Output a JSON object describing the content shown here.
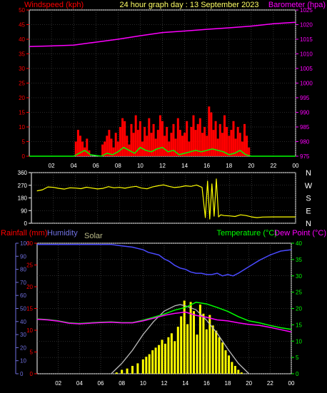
{
  "header": {
    "left_label": "Windspeed (kph)",
    "center_label": "24 hour graph day : 13 September 2023",
    "right_label": "Barometer (hpa)"
  },
  "colors": {
    "background": "#000000",
    "grid": "#555555",
    "red": "#ff0000",
    "magenta": "#ff00ff",
    "lime": "#00ff00",
    "yellow": "#ffff00",
    "blue": "#4a4aff",
    "lavender": "#7070e0",
    "solar_label": "#bbbb88",
    "solar_curve": "#bbbbbb",
    "white": "#ffffff"
  },
  "chart_data": [
    {
      "id": "wind-baro",
      "type": "line",
      "title": "24 hour graph day : 13 September 2023",
      "ylabel_left": "Windspeed (kph)",
      "ylabel_right": "Barometer (hpa)",
      "x_ticks": [
        "02",
        "04",
        "06",
        "08",
        "10",
        "12",
        "14",
        "16",
        "18",
        "20",
        "22",
        "00"
      ],
      "x_range": [
        0,
        24
      ],
      "left_axis": {
        "range": [
          0,
          50
        ],
        "ticks": [
          0,
          5,
          10,
          15,
          20,
          25,
          30,
          35,
          40,
          45,
          50
        ]
      },
      "right_axis": {
        "range": [
          975,
          1025
        ],
        "ticks": [
          975,
          980,
          985,
          990,
          995,
          1000,
          1005,
          1010,
          1015,
          1020,
          1025
        ]
      },
      "series": [
        {
          "name": "Barometer (hpa)",
          "axis": "right",
          "style": "line",
          "x": [
            0,
            2,
            4,
            6,
            8,
            10,
            12,
            14,
            16,
            18,
            20,
            22,
            24
          ],
          "y": [
            1012.5,
            1012.7,
            1013.0,
            1014.0,
            1015.0,
            1016.2,
            1017.3,
            1017.8,
            1018.4,
            1018.9,
            1019.5,
            1020.3,
            1020.8
          ]
        },
        {
          "name": "gust",
          "axis": "left",
          "style": "bars",
          "x": [
            4.2,
            4.4,
            4.6,
            4.8,
            5.0,
            5.2,
            5.4,
            6.6,
            6.8,
            7.0,
            7.2,
            7.4,
            7.6,
            7.8,
            8.0,
            8.2,
            8.4,
            8.6,
            8.8,
            9.0,
            9.2,
            9.4,
            9.6,
            9.8,
            10.0,
            10.2,
            10.4,
            10.6,
            10.8,
            11.0,
            11.2,
            11.4,
            11.6,
            11.8,
            12.0,
            12.2,
            12.4,
            12.6,
            12.8,
            13.0,
            13.2,
            13.4,
            13.6,
            13.8,
            14.0,
            14.2,
            14.4,
            14.6,
            14.8,
            15.0,
            15.2,
            15.4,
            15.6,
            15.8,
            16.0,
            16.2,
            16.4,
            16.6,
            16.8,
            17.0,
            17.2,
            17.4,
            17.6,
            17.8,
            18.0,
            18.2,
            18.4,
            18.6,
            18.8,
            19.0,
            19.2,
            19.4,
            19.6,
            19.8
          ],
          "y": [
            5,
            9,
            7,
            5,
            3,
            6,
            2,
            4,
            5,
            7,
            9,
            6,
            3,
            8,
            5,
            10,
            13,
            12,
            7,
            4,
            11,
            8,
            14,
            9,
            12,
            5,
            10,
            7,
            13,
            8,
            11,
            6,
            9,
            14,
            12,
            7,
            10,
            5,
            8,
            11,
            6,
            13,
            9,
            7,
            8,
            12,
            5,
            10,
            14,
            9,
            11,
            13,
            8,
            10,
            7,
            17,
            15,
            9,
            12,
            6,
            11,
            8,
            14,
            10,
            7,
            9,
            12,
            6,
            10,
            8,
            5,
            11,
            7,
            3
          ]
        },
        {
          "name": "wind average",
          "axis": "left",
          "style": "line",
          "x": [
            0,
            4.0,
            4.5,
            5.0,
            5.5,
            6.5,
            7.0,
            7.5,
            8.0,
            8.5,
            9.0,
            9.5,
            10.0,
            10.5,
            11.0,
            11.5,
            12.0,
            12.5,
            13.0,
            13.5,
            14.0,
            14.5,
            15.0,
            15.5,
            16.0,
            16.5,
            17.0,
            17.5,
            18.0,
            18.5,
            19.0,
            19.5,
            20.0,
            24
          ],
          "y": [
            0,
            0,
            1,
            2,
            0.5,
            0,
            1,
            0.5,
            1.5,
            3,
            2,
            1,
            3,
            2,
            1.5,
            2.5,
            3,
            1.5,
            2,
            0.5,
            1,
            1.5,
            2,
            1.5,
            2,
            2.5,
            2,
            1.5,
            0.5,
            1,
            2,
            0.5,
            0,
            0
          ]
        }
      ]
    },
    {
      "id": "wind-direction",
      "type": "line",
      "right_labels": [
        "N",
        "W",
        "S",
        "E",
        "N"
      ],
      "x_range": [
        0,
        24
      ],
      "y_axis": {
        "range": [
          0,
          360
        ],
        "ticks": [
          0,
          90,
          180,
          270,
          360
        ]
      },
      "series": [
        {
          "name": "wind direction",
          "style": "line",
          "x": [
            0.5,
            1.0,
            1.5,
            2.0,
            2.5,
            3.0,
            3.5,
            4.0,
            4.5,
            5.0,
            5.5,
            6.0,
            6.5,
            7.0,
            7.5,
            8.0,
            8.5,
            9.0,
            9.5,
            10.0,
            10.5,
            11.0,
            11.5,
            12.0,
            12.5,
            13.0,
            13.5,
            14.0,
            14.5,
            15.0,
            15.5,
            15.8,
            16.0,
            16.2,
            16.4,
            16.6,
            16.8,
            17.0,
            17.2,
            17.5,
            18.0,
            18.5,
            19.0,
            19.5,
            20.0,
            20.5,
            21.0,
            22.0,
            23.0,
            24.0
          ],
          "y": [
            230,
            238,
            258,
            255,
            248,
            243,
            252,
            250,
            246,
            256,
            250,
            244,
            248,
            260,
            252,
            255,
            249,
            257,
            262,
            250,
            245,
            258,
            266,
            273,
            262,
            254,
            258,
            266,
            262,
            272,
            255,
            40,
            300,
            30,
            280,
            50,
            315,
            45,
            60,
            55,
            52,
            48,
            60,
            55,
            45,
            40,
            44,
            45,
            45,
            45
          ]
        }
      ]
    },
    {
      "id": "temp-hum-solar",
      "type": "line",
      "labels": {
        "rainfall": "Rainfall (mm)",
        "humidity": "Humidity",
        "solar": "Solar",
        "temperature": "Temperature (°C)",
        "dewpoint": "Dew Point (°C)"
      },
      "x_ticks": [
        "02",
        "04",
        "06",
        "08",
        "10",
        "12",
        "14",
        "16",
        "18",
        "20",
        "22",
        "00"
      ],
      "x_range": [
        0,
        24
      ],
      "humidity_axis": {
        "range": [
          0,
          100
        ],
        "ticks": [
          0,
          10,
          20,
          30,
          40,
          50,
          60,
          70,
          80,
          90,
          100
        ]
      },
      "rain_axis": {
        "range": [
          0,
          30
        ],
        "ticks": [
          0,
          5,
          10,
          15,
          20,
          25,
          30
        ]
      },
      "temp_axis": {
        "range": [
          0,
          40
        ],
        "ticks": [
          0,
          5,
          10,
          15,
          20,
          25,
          30,
          35,
          40
        ]
      },
      "series": [
        {
          "name": "Humidity",
          "axis": "humidity",
          "style": "line",
          "x": [
            0,
            2,
            4,
            6,
            7,
            8,
            9,
            9.5,
            10,
            10.5,
            11,
            11.5,
            12,
            12.5,
            13,
            13.5,
            14,
            14.5,
            15,
            15.5,
            16,
            16.5,
            17,
            17.5,
            18,
            18.5,
            19,
            20,
            21,
            22,
            23,
            24
          ],
          "y": [
            99,
            99,
            99,
            99,
            99,
            98,
            97,
            96,
            95,
            93,
            92,
            91,
            88,
            86,
            83,
            81,
            80,
            78,
            77,
            77,
            76,
            76,
            77,
            75,
            76,
            75,
            77,
            82,
            87,
            91,
            94,
            95
          ]
        },
        {
          "name": "Temperature (°C)",
          "axis": "temp",
          "style": "line",
          "x": [
            0,
            1,
            2,
            3,
            4,
            5,
            6,
            7,
            8,
            9,
            10,
            11,
            12,
            13,
            14,
            15,
            16,
            17,
            18,
            19,
            20,
            21,
            22,
            23,
            24
          ],
          "y": [
            16.8,
            16.6,
            16.2,
            15.6,
            15.4,
            15.6,
            15.8,
            15.9,
            15.7,
            15.7,
            16.4,
            17.3,
            18.3,
            19.5,
            20.3,
            21.9,
            21.4,
            20.3,
            19.1,
            17.5,
            16.2,
            15.6,
            14.8,
            14.1,
            13.6
          ]
        },
        {
          "name": "Dew Point (°C)",
          "axis": "temp",
          "style": "line",
          "x": [
            0,
            1,
            2,
            3,
            4,
            5,
            6,
            7,
            8,
            9,
            10,
            11,
            12,
            13,
            14,
            15,
            16,
            17,
            18,
            19,
            20,
            21,
            22,
            23,
            24
          ],
          "y": [
            16.7,
            16.5,
            16.1,
            15.5,
            15.3,
            15.5,
            15.7,
            15.8,
            15.6,
            15.6,
            16.2,
            17.0,
            17.9,
            18.5,
            18.9,
            17.9,
            17.3,
            16.5,
            16.2,
            15.6,
            15.1,
            14.8,
            14.2,
            13.5,
            12.8
          ]
        },
        {
          "name": "Solar",
          "axis": "humidity",
          "style": "line",
          "x": [
            7.0,
            8.0,
            9.0,
            10.0,
            11.0,
            12.0,
            13.0,
            13.5,
            14.0,
            15.0,
            16.0,
            17.0,
            18.0,
            19.0,
            20.0
          ],
          "y": [
            0,
            8,
            18,
            30,
            40,
            48,
            52,
            53,
            52,
            49,
            41,
            31,
            19,
            8,
            0
          ]
        },
        {
          "name": "Solar (measured)",
          "axis": "humidity",
          "style": "bars",
          "x": [
            7.5,
            8.0,
            8.5,
            9.0,
            9.5,
            10.0,
            10.3,
            10.6,
            10.9,
            11.2,
            11.5,
            11.8,
            12.1,
            12.4,
            12.7,
            13.0,
            13.3,
            13.6,
            13.9,
            14.2,
            14.5,
            14.8,
            15.1,
            15.4,
            15.7,
            16.0,
            16.3,
            16.6,
            16.9,
            17.2,
            17.5,
            17.8,
            18.1,
            18.4,
            18.7,
            19.0,
            19.3
          ],
          "y": [
            1,
            3,
            4,
            6,
            8,
            11,
            13,
            15,
            18,
            20,
            22,
            26,
            23,
            28,
            31,
            25,
            36,
            44,
            56,
            38,
            55,
            48,
            30,
            53,
            46,
            34,
            45,
            37,
            33,
            28,
            24,
            18,
            14,
            9,
            6,
            3,
            1
          ]
        }
      ]
    }
  ]
}
